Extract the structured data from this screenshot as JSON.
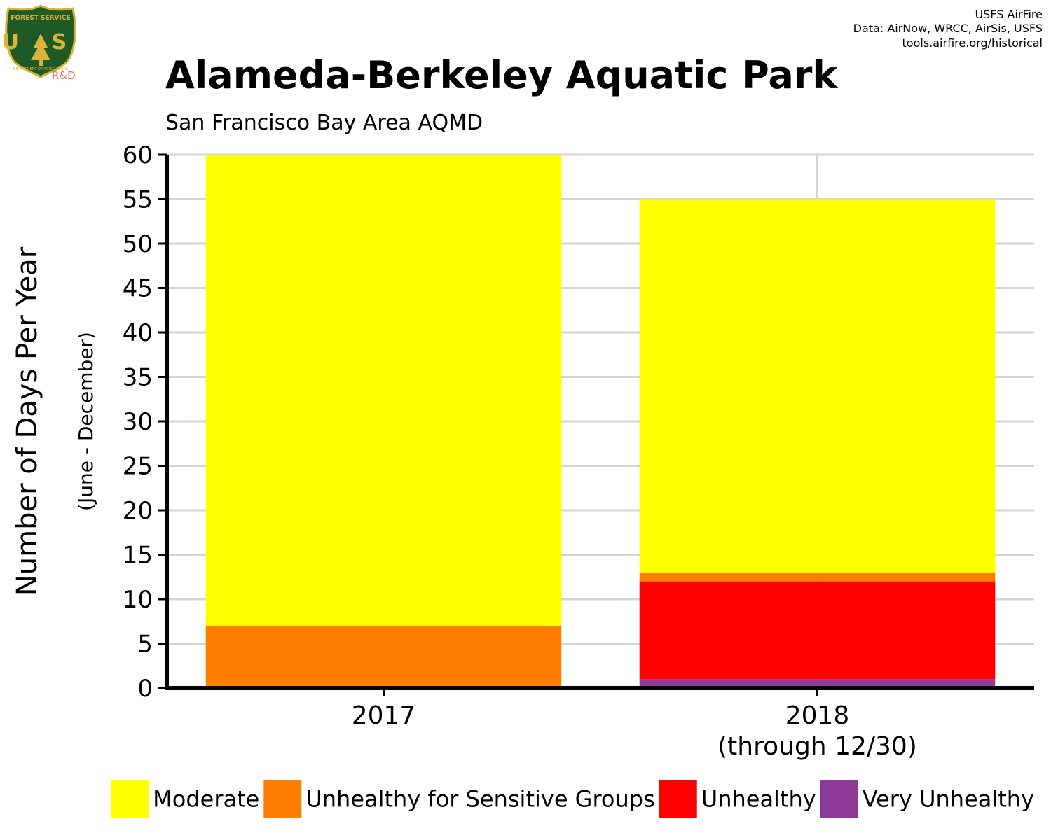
{
  "logo": {
    "top_text": "FOREST SERVICE",
    "letters": "U S",
    "bottom_text": "DEPARTMENT OF AGRICULTURE",
    "rd_label": "R&D"
  },
  "credits": [
    "USFS AirFire",
    "Data: AirNow, WRCC, AirSis, USFS",
    "tools.airfire.org/historical"
  ],
  "chart_data": {
    "type": "bar",
    "stacked": true,
    "title": "Alameda-Berkeley Aquatic Park",
    "subtitle": "San Francisco Bay Area AQMD",
    "ylabel": "Number of Days Per Year",
    "ylabel_sub": "(June - December)",
    "xlabel": "",
    "ylim": [
      0,
      60
    ],
    "yticks": [
      0,
      5,
      10,
      15,
      20,
      25,
      30,
      35,
      40,
      45,
      50,
      55,
      60
    ],
    "grid": true,
    "legend_position": "bottom",
    "categories": [
      [
        "2017"
      ],
      [
        "2018",
        "(through 12/30)"
      ]
    ],
    "series": [
      {
        "name": "Very Unhealthy",
        "color": "#8E3A96",
        "values": [
          0,
          1
        ]
      },
      {
        "name": "Unhealthy",
        "color": "#FF0000",
        "values": [
          0,
          11
        ]
      },
      {
        "name": "Unhealthy for Sensitive Groups",
        "color": "#FF7E00",
        "values": [
          7,
          1
        ]
      },
      {
        "name": "Moderate",
        "color": "#FFFF00",
        "values": [
          53,
          42
        ]
      }
    ],
    "legend_order": [
      "Moderate",
      "Unhealthy for Sensitive Groups",
      "Unhealthy",
      "Very Unhealthy"
    ]
  }
}
